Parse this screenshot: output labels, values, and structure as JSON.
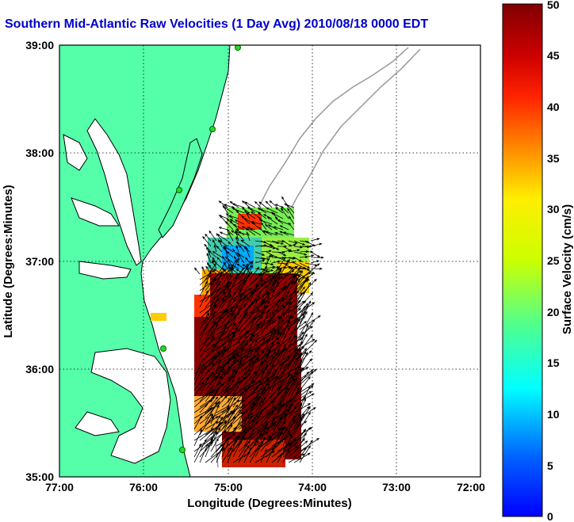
{
  "title": "Southern Mid-Atlantic Raw Velocities (1 Day Avg) 2010/08/18 0000 EDT",
  "x_axis": {
    "label": "Longitude (Degrees:Minutes)",
    "ticks": [
      "77:00",
      "76:00",
      "75:00",
      "74:00",
      "73:00",
      "72:00"
    ]
  },
  "y_axis": {
    "label": "Latitude (Degrees:Minutes)",
    "ticks": [
      "39:00",
      "38:00",
      "37:00",
      "36:00",
      "35:00"
    ]
  },
  "colorbar": {
    "label": "Surface Velocity (cm/s)",
    "ticks": [
      "50",
      "45",
      "40",
      "35",
      "30",
      "25",
      "20",
      "15",
      "10",
      "5",
      "0"
    ]
  },
  "colors": {
    "title": "#0000cc",
    "land": "#55ffaa",
    "ocean": "#ffffff",
    "bathymetry": "#999999",
    "station": "#22dd22"
  }
}
